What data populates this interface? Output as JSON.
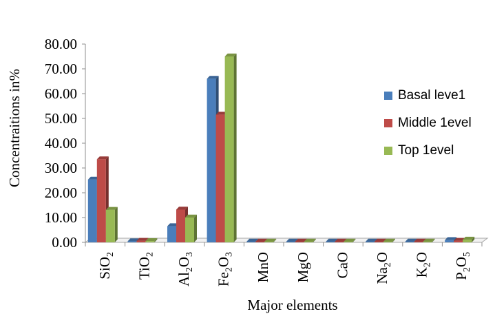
{
  "chart_data": {
    "type": "bar",
    "title": "",
    "xlabel": "Major elements",
    "ylabel": "Concentraitions in%",
    "ylim": [
      0,
      80
    ],
    "yticks": [
      "0.00",
      "10.00",
      "20.00",
      "30.00",
      "40.00",
      "50.00",
      "60.00",
      "70.00",
      "80.00"
    ],
    "categories": [
      {
        "base": "SiO",
        "subs": [
          "2"
        ]
      },
      {
        "base": "TiO",
        "subs": [
          "2"
        ]
      },
      {
        "base": "Al",
        "mid": "O",
        "subs": [
          "2",
          "3"
        ]
      },
      {
        "base": "Fe",
        "mid": "O",
        "subs": [
          "2",
          "3"
        ]
      },
      {
        "base": "MnO",
        "subs": []
      },
      {
        "base": "MgO",
        "subs": []
      },
      {
        "base": "CaO",
        "subs": []
      },
      {
        "base": "Na",
        "mid": "O",
        "subs": [
          "2"
        ]
      },
      {
        "base": "K",
        "mid": "O",
        "subs": [
          "2"
        ]
      },
      {
        "base": "P",
        "mid": "O",
        "subs": [
          "2",
          "5"
        ]
      }
    ],
    "series": [
      {
        "name": "Basal leve1",
        "color": "#4a7ebb",
        "values": [
          25.3,
          0.4,
          6.5,
          66.0,
          0.1,
          0.05,
          0.1,
          0.05,
          0.1,
          0.9
        ]
      },
      {
        "name": "Middle 1evel",
        "color": "#be4b48",
        "values": [
          33.5,
          0.6,
          13.2,
          51.5,
          0.1,
          0.05,
          0.1,
          0.05,
          0.2,
          0.6
        ]
      },
      {
        "name": "Top 1evel",
        "color": "#98b954",
        "values": [
          13.1,
          0.5,
          10.0,
          75.0,
          0.1,
          0.05,
          0.1,
          0.05,
          0.1,
          1.1
        ]
      }
    ],
    "grid": false,
    "legend_position": "right"
  }
}
